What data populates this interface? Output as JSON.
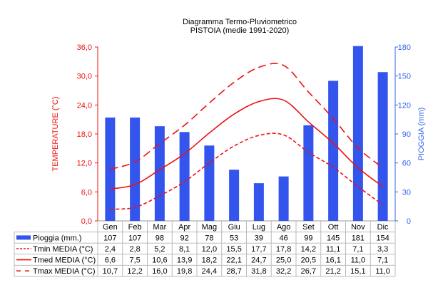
{
  "chart_data": {
    "type": "bar+line",
    "title": "Diagramma Termo-Pluviometrico",
    "subtitle": "PISTOIA (medie 1991-2020)",
    "categories": [
      "Gen",
      "Feb",
      "Mar",
      "Apr",
      "Mag",
      "Giu",
      "Lug",
      "Ago",
      "Set",
      "Ott",
      "Nov",
      "Dic"
    ],
    "ylabel_left": "TEMPERATURE (°C)",
    "ylabel_right": "PIOGGIA (mm)",
    "ylim_left": [
      0,
      36
    ],
    "yticks_left": [
      "0,0",
      "6,0",
      "12,0",
      "18,0",
      "24,0",
      "30,0",
      "36,0"
    ],
    "ylim_right": [
      0,
      180
    ],
    "yticks_right": [
      "0",
      "30",
      "60",
      "90",
      "120",
      "150",
      "180"
    ],
    "colors": {
      "rain": "#3355ee",
      "temp": "#ee1111",
      "left_axis": "#ee1111",
      "right_axis": "#3366ee"
    },
    "series": [
      {
        "name": "Pioggia (mm.)",
        "kind": "bar",
        "axis": "right",
        "style": "bar",
        "values": [
          107,
          107,
          98,
          92,
          78,
          53,
          39,
          46,
          99,
          145,
          181,
          154
        ],
        "labels": [
          "107",
          "107",
          "98",
          "92",
          "78",
          "53",
          "39",
          "46",
          "99",
          "145",
          "181",
          "154"
        ]
      },
      {
        "name": "Tmin MEDIA (°C)",
        "kind": "line",
        "axis": "left",
        "style": "dotted",
        "values": [
          2.4,
          2.8,
          5.2,
          8.1,
          12.0,
          15.5,
          17.7,
          17.8,
          14.2,
          11.1,
          7.1,
          3.3
        ],
        "labels": [
          "2,4",
          "2,8",
          "5,2",
          "8,1",
          "12,0",
          "15,5",
          "17,7",
          "17,8",
          "14,2",
          "11,1",
          "7,1",
          "3,3"
        ]
      },
      {
        "name": "Tmed MEDIA (°C)",
        "kind": "line",
        "axis": "left",
        "style": "solid",
        "values": [
          6.6,
          7.5,
          10.6,
          13.9,
          18.2,
          22.1,
          24.7,
          25.0,
          20.5,
          16.1,
          11.0,
          7.1
        ],
        "labels": [
          "6,6",
          "7,5",
          "10,6",
          "13,9",
          "18,2",
          "22,1",
          "24,7",
          "25,0",
          "20,5",
          "16,1",
          "11,0",
          "7,1"
        ]
      },
      {
        "name": "Tmax MEDIA (°C)",
        "kind": "line",
        "axis": "left",
        "style": "dashed",
        "values": [
          10.7,
          12.2,
          16.0,
          19.8,
          24.4,
          28.7,
          31.8,
          32.2,
          26.7,
          21.2,
          15.1,
          11.0
        ],
        "labels": [
          "10,7",
          "12,2",
          "16,0",
          "19,8",
          "24,4",
          "28,7",
          "31,8",
          "32,2",
          "26,7",
          "21,2",
          "15,1",
          "11,0"
        ]
      }
    ]
  }
}
